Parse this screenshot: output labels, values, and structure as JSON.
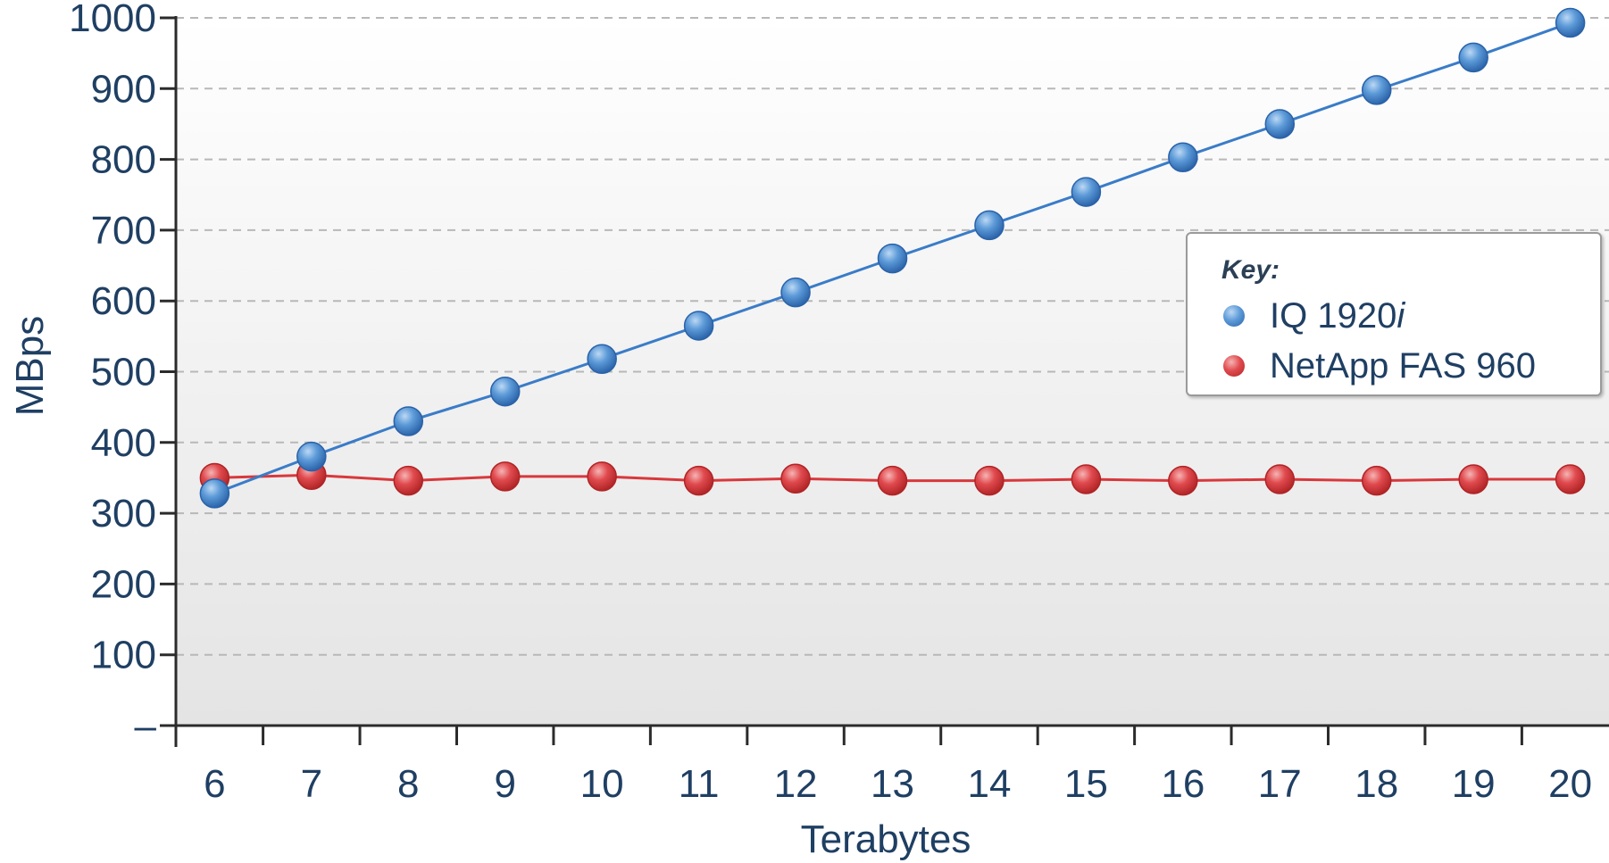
{
  "chart_data": {
    "type": "line",
    "title": "",
    "xlabel": "Terabytes",
    "ylabel": "MBps",
    "x": [
      6,
      7,
      8,
      9,
      10,
      11,
      12,
      13,
      14,
      15,
      16,
      17,
      18,
      19,
      20
    ],
    "y_ticks": [
      "–",
      "100",
      "200",
      "300",
      "400",
      "500",
      "600",
      "700",
      "800",
      "900",
      "1000"
    ],
    "ylim": [
      0,
      1000
    ],
    "xlim": [
      5.6,
      20.4
    ],
    "grid": "horizontal dashed",
    "legend_position": "right",
    "legend_title": "Key:",
    "series": [
      {
        "name": "IQ 1920i",
        "name_prefix": "IQ 1920",
        "name_suffix_italic": "i",
        "color": "#3a7cc8",
        "values": [
          328,
          380,
          430,
          472,
          518,
          565,
          612,
          660,
          707,
          754,
          803,
          850,
          898,
          944,
          993
        ]
      },
      {
        "name": "NetApp FAS 960",
        "color": "#d8383c",
        "values": [
          350,
          354,
          346,
          352,
          352,
          346,
          349,
          346,
          346,
          348,
          346,
          348,
          346,
          348,
          348
        ]
      }
    ]
  }
}
